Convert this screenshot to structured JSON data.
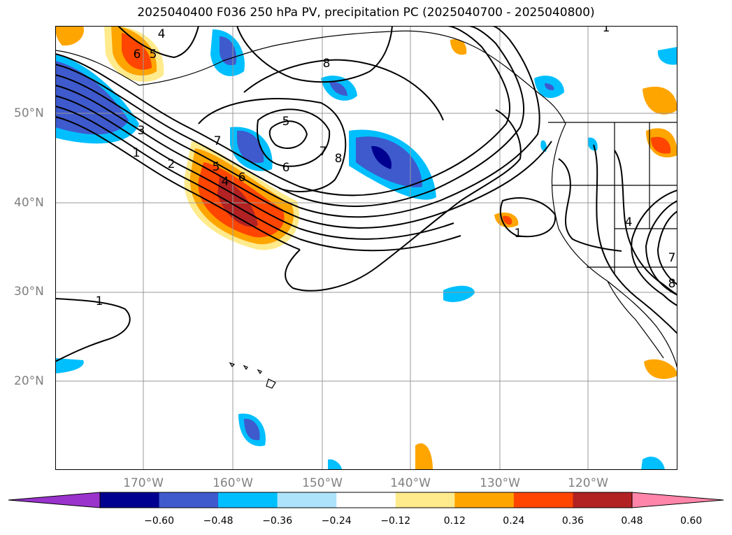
{
  "title": "2025040400 F036 250 hPa PV, precipitation PC (2025040700 - 2025040800)",
  "latitude_labels": [
    "50°N",
    "40°N",
    "30°N",
    "20°N"
  ],
  "longitude_labels": [
    "170°W",
    "160°W",
    "150°W",
    "140°W",
    "130°W",
    "120°W"
  ],
  "contour_labels": [
    "4",
    "6",
    "5",
    "8",
    "5",
    "6",
    "7",
    "8",
    "3",
    "1",
    "2",
    "5",
    "4",
    "6",
    "7",
    "1",
    "1",
    "1",
    "4",
    "7",
    "8"
  ],
  "colorbar": {
    "ticks": [
      "−0.60",
      "−0.48",
      "−0.36",
      "−0.24",
      "−0.12",
      "0.12",
      "0.24",
      "0.36",
      "0.48",
      "0.60"
    ],
    "colors": [
      "#9933cc",
      "#000090",
      "#3e5acd",
      "#00bfff",
      "#ade3fb",
      "#ffffff",
      "#ffea8c",
      "#ffa500",
      "#ff4500",
      "#b22222",
      "#ff85aa"
    ]
  },
  "colors": {
    "contour": "#000000",
    "grid": "#999999",
    "axis_labels": "#808080"
  }
}
